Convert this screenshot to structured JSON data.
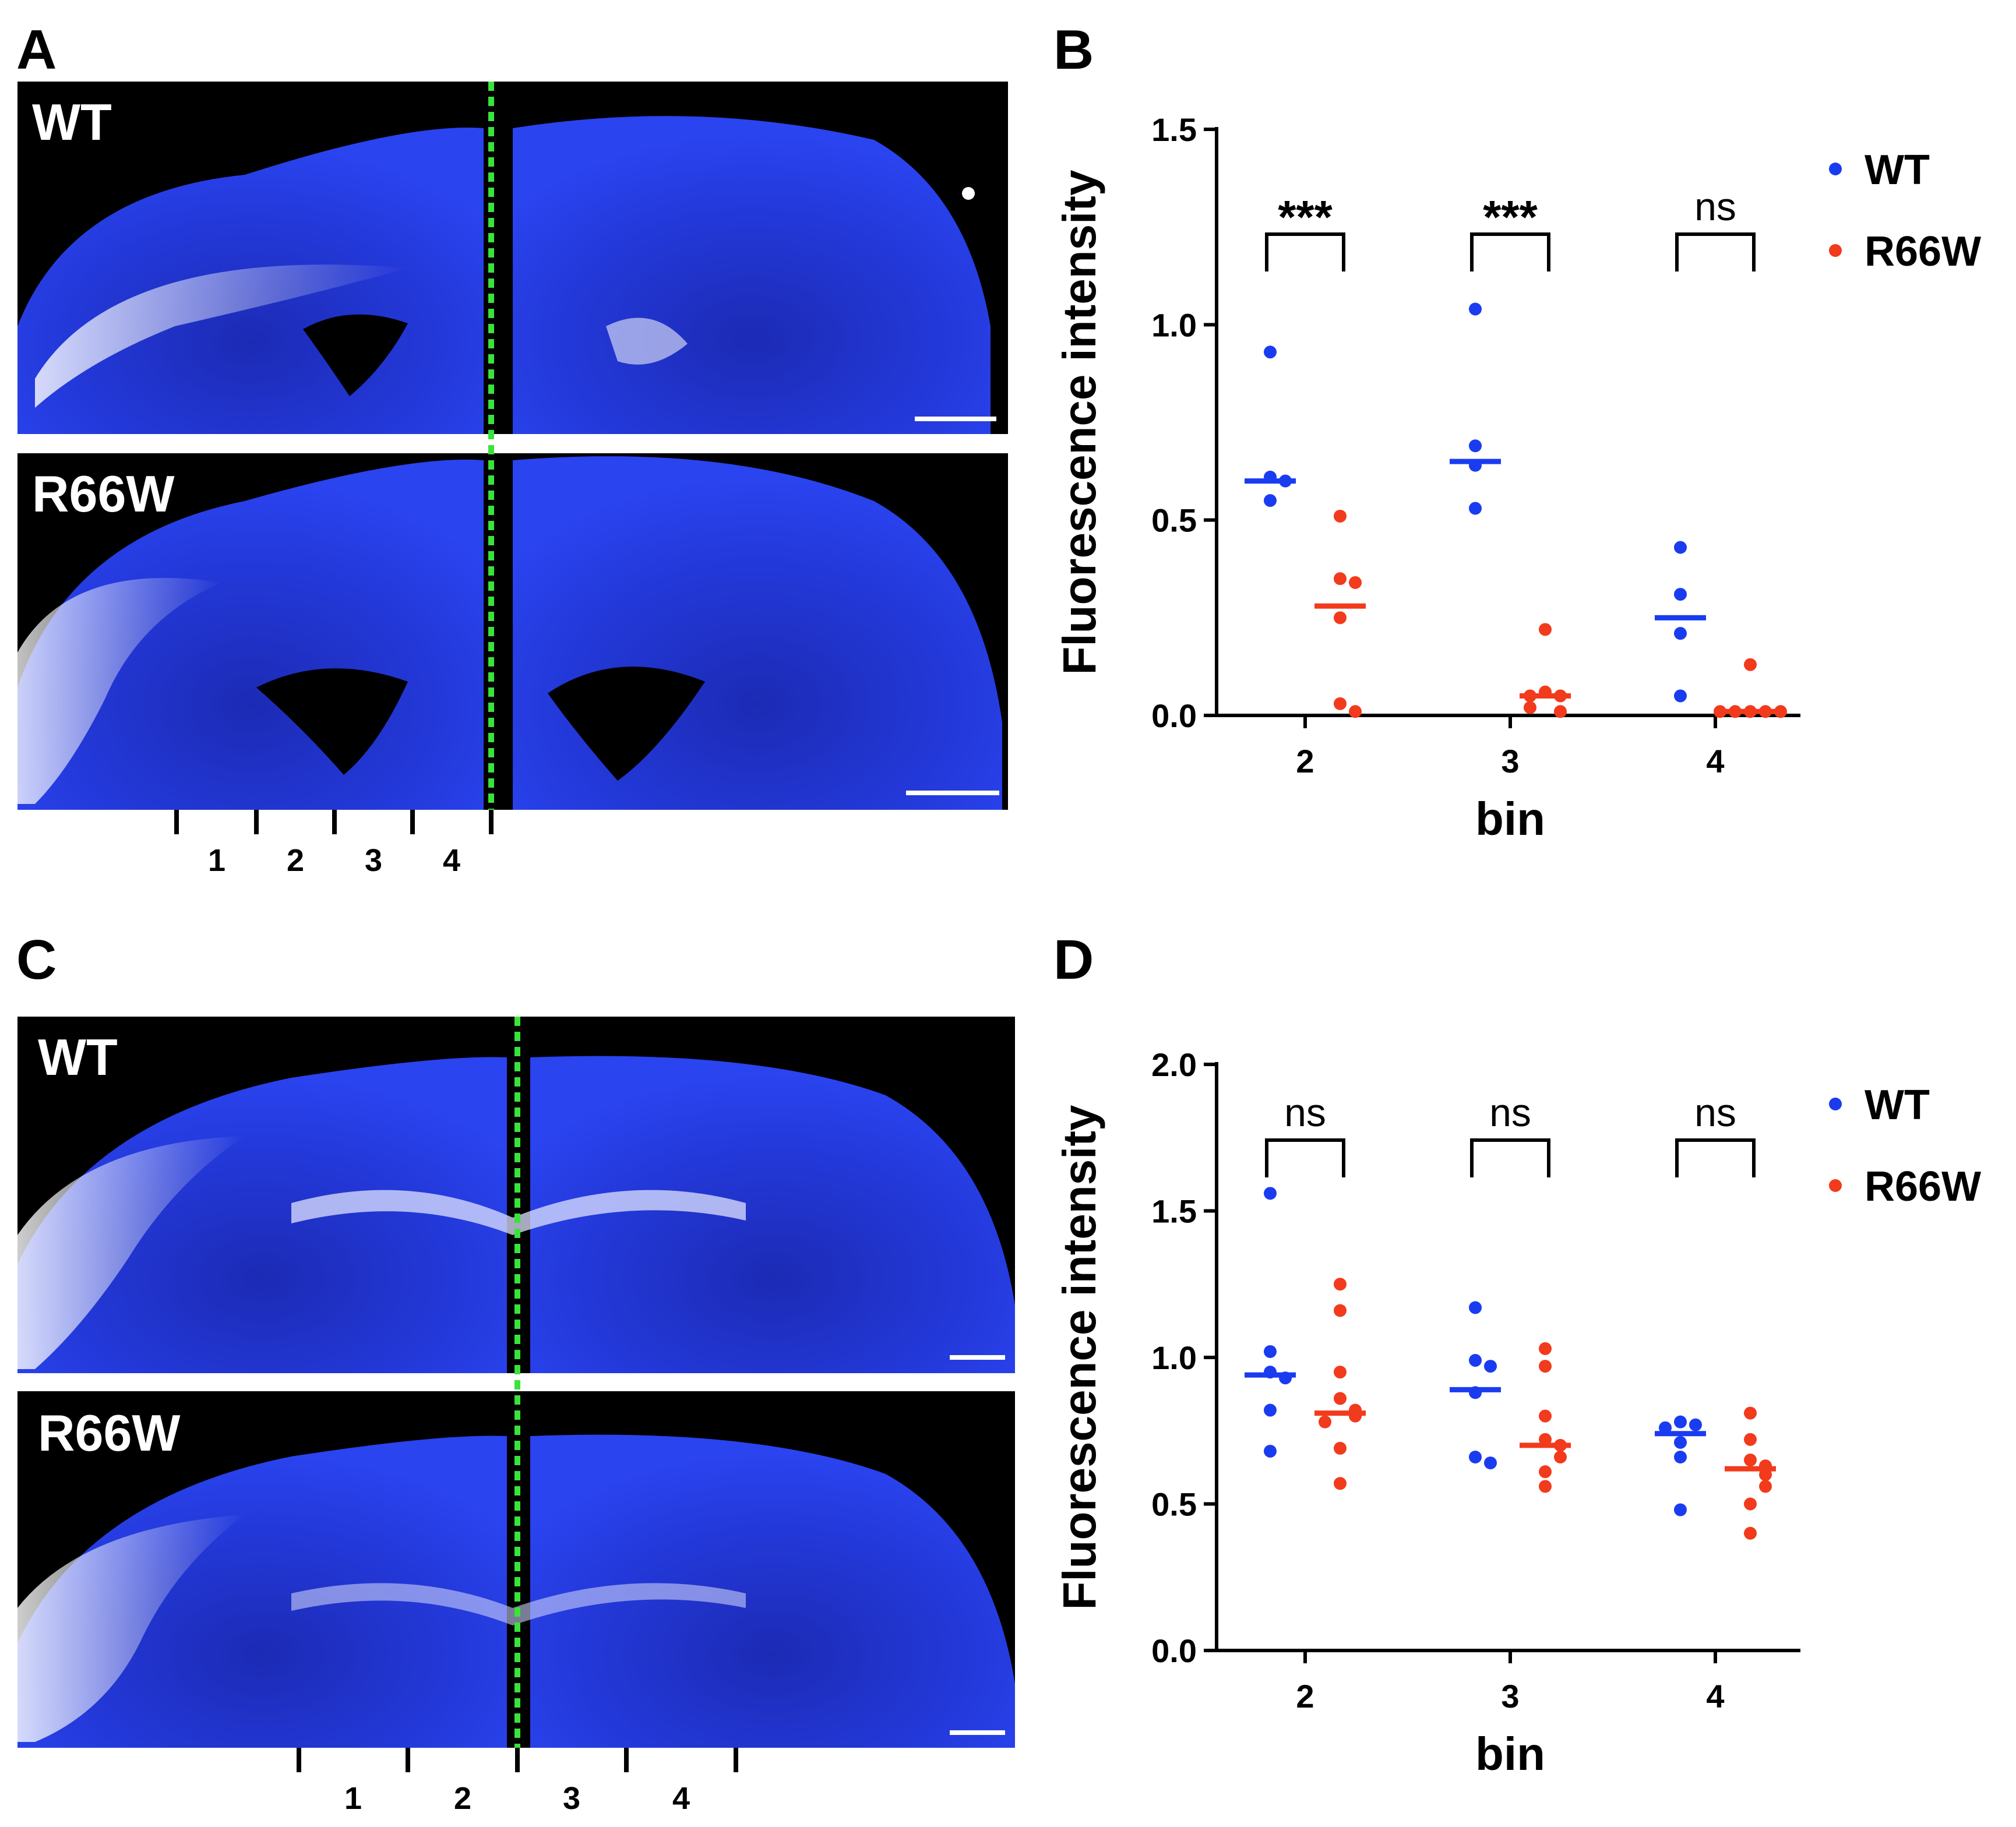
{
  "colors": {
    "wt": "#1a3cf0",
    "r66w": "#f23a1c",
    "midline": "#39e339",
    "axis": "#000000",
    "image_bg": "#000000",
    "brain_blue": "#2338d8"
  },
  "panels": {
    "A": {
      "letter": "A",
      "image_labels": [
        "WT",
        "R66W"
      ],
      "bin_labels": [
        "1",
        "2",
        "3",
        "4"
      ]
    },
    "C": {
      "letter": "C",
      "image_labels": [
        "WT",
        "R66W"
      ],
      "bin_labels": [
        "1",
        "2",
        "3",
        "4"
      ]
    }
  },
  "chart_data": [
    {
      "panel": "B",
      "type": "scatter",
      "ylabel": "Fluorescence intensity",
      "xlabel": "bin",
      "ylim": [
        0,
        1.5
      ],
      "yticks": [
        "0.0",
        "0.5",
        "1.0",
        "1.5"
      ],
      "categories": [
        "2",
        "3",
        "4"
      ],
      "legend": [
        {
          "name": "WT",
          "color": "#1a3cf0"
        },
        {
          "name": "R66W",
          "color": "#f23a1c"
        }
      ],
      "significance": [
        "***",
        "***",
        "ns"
      ],
      "series": [
        {
          "name": "WT",
          "points": [
            [
              0.93,
              0.61,
              0.6,
              0.55
            ],
            [
              1.04,
              0.69,
              0.64,
              0.53
            ],
            [
              0.43,
              0.31,
              0.21,
              0.05
            ]
          ],
          "means": [
            0.6,
            0.65,
            0.25
          ]
        },
        {
          "name": "R66W",
          "points": [
            [
              0.51,
              0.35,
              0.34,
              0.25,
              0.03,
              0.01
            ],
            [
              0.22,
              0.06,
              0.05,
              0.05,
              0.02,
              0.01
            ],
            [
              0.13,
              0.01,
              0.01,
              0.01,
              0.01,
              0.01
            ]
          ],
          "means": [
            0.28,
            0.05,
            0.01
          ]
        }
      ]
    },
    {
      "panel": "D",
      "type": "scatter",
      "ylabel": "Fluorescence intensity",
      "xlabel": "bin",
      "ylim": [
        0,
        2.0
      ],
      "yticks": [
        "0.0",
        "0.5",
        "1.0",
        "1.5",
        "2.0"
      ],
      "categories": [
        "2",
        "3",
        "4"
      ],
      "legend": [
        {
          "name": "WT",
          "color": "#1a3cf0"
        },
        {
          "name": "R66W",
          "color": "#f23a1c"
        }
      ],
      "significance": [
        "ns",
        "ns",
        "ns"
      ],
      "series": [
        {
          "name": "WT",
          "points": [
            [
              1.56,
              1.02,
              0.95,
              0.93,
              0.82,
              0.68
            ],
            [
              1.17,
              0.99,
              0.97,
              0.88,
              0.66,
              0.64
            ],
            [
              0.78,
              0.77,
              0.76,
              0.71,
              0.66,
              0.48
            ]
          ],
          "means": [
            0.94,
            0.89,
            0.74
          ]
        },
        {
          "name": "R66W",
          "points": [
            [
              1.25,
              1.16,
              0.95,
              0.86,
              0.82,
              0.8,
              0.78,
              0.69,
              0.57
            ],
            [
              1.03,
              0.97,
              0.8,
              0.72,
              0.7,
              0.66,
              0.61,
              0.56
            ],
            [
              0.81,
              0.72,
              0.65,
              0.63,
              0.6,
              0.56,
              0.5,
              0.4
            ]
          ],
          "means": [
            0.81,
            0.7,
            0.62
          ]
        }
      ]
    }
  ]
}
